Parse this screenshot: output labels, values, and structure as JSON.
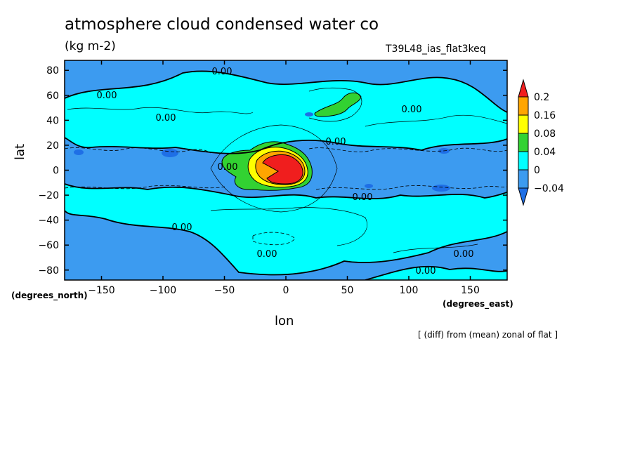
{
  "chart_data": {
    "type": "contour",
    "title": "atmosphere cloud condensed water co",
    "units": "(kg m-2)",
    "run_id": "T39L48_ias_flat3keq",
    "xlabel": "lon",
    "ylabel": "lat",
    "x_units_label": "(degrees_east)",
    "y_units_label": "(degrees_north)",
    "note": "[ (diff) from (mean) zonal of flat ]",
    "xlim": [
      -180,
      180
    ],
    "ylim": [
      -88,
      88
    ],
    "x_ticks": [
      -150,
      -100,
      -50,
      0,
      50,
      100,
      150
    ],
    "y_ticks": [
      -80,
      -60,
      -40,
      -20,
      0,
      20,
      40,
      60,
      80
    ],
    "colorbar": {
      "levels": [
        -0.04,
        0,
        0.04,
        0.08,
        0.16,
        0.2
      ],
      "labels": [
        "-0.04",
        "0",
        "0.04",
        "0.08",
        "0.16",
        "0.2"
      ],
      "colors": [
        "#1e6fe6",
        "#3c9bf0",
        "#00ffff",
        "#32d232",
        "#ffff00",
        "#ffa500",
        "#f01e1e"
      ]
    },
    "contour_label": "0.00",
    "features": [
      {
        "lon": 0,
        "lat": 0,
        "level": 0.2
      },
      {
        "lon": -30,
        "lat": 10,
        "level": 0.04
      },
      {
        "lon": -30,
        "lat": -10,
        "level": 0.04
      },
      {
        "lon": 42,
        "lat": 52,
        "level": 0.04
      },
      {
        "lon": -95,
        "lat": 14,
        "level": -0.04
      },
      {
        "lon": 130,
        "lat": 14,
        "level": -0.04
      },
      {
        "lon": 125,
        "lat": -14,
        "level": -0.04
      },
      {
        "lon": -165,
        "lat": 13,
        "level": -0.04
      }
    ]
  }
}
